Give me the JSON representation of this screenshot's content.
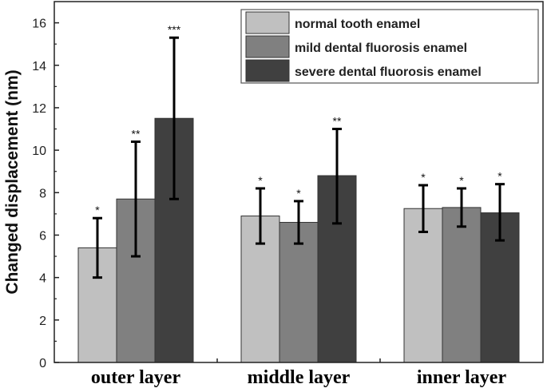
{
  "chart_data": {
    "type": "bar",
    "title": "",
    "xlabel": "",
    "ylabel": "Changed displacement (nm)",
    "ylim": [
      0,
      17
    ],
    "yticks": [
      0,
      2,
      4,
      6,
      8,
      10,
      12,
      14,
      16
    ],
    "categories": [
      "outer layer",
      "middle layer",
      "inner layer"
    ],
    "legend_position": "top-right",
    "series": [
      {
        "name": "normal tooth enamel",
        "color": "#c0c0c0",
        "values": [
          5.4,
          6.9,
          7.25
        ],
        "err_low": [
          4.0,
          5.6,
          6.15
        ],
        "err_high": [
          6.8,
          8.2,
          8.35
        ],
        "significance": [
          "*",
          "*",
          "*"
        ]
      },
      {
        "name": "mild dental fluorosis enamel",
        "color": "#808080",
        "values": [
          7.7,
          6.6,
          7.3
        ],
        "err_low": [
          5.0,
          5.6,
          6.4
        ],
        "err_high": [
          10.4,
          7.6,
          8.2
        ],
        "significance": [
          "**",
          "*",
          "*"
        ]
      },
      {
        "name": "severe dental fluorosis enamel",
        "color": "#404040",
        "values": [
          11.5,
          8.8,
          7.05
        ],
        "err_low": [
          7.7,
          6.55,
          5.75
        ],
        "err_high": [
          15.3,
          11.0,
          8.4
        ],
        "significance": [
          "***",
          "**",
          "*"
        ]
      }
    ]
  }
}
